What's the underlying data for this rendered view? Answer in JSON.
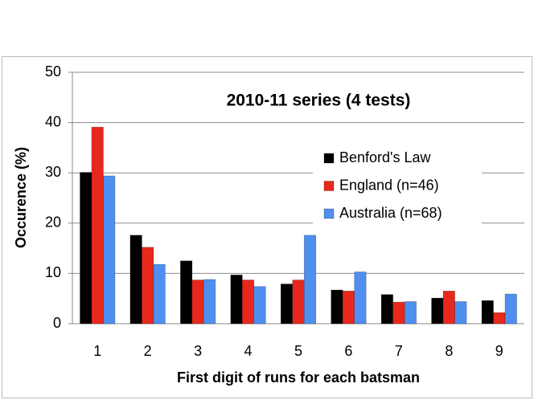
{
  "chart_data": {
    "type": "bar",
    "title": "2010-11 series (4 tests)",
    "x_label": "First digit of runs for each batsman",
    "y_label": "Occurence (%)",
    "categories": [
      "1",
      "2",
      "3",
      "4",
      "5",
      "6",
      "7",
      "8",
      "9"
    ],
    "series": [
      {
        "name": "Benford's Law",
        "color": "#000000",
        "values": [
          30.1,
          17.6,
          12.5,
          9.7,
          7.9,
          6.7,
          5.8,
          5.1,
          4.6
        ]
      },
      {
        "name": "England (n=46)",
        "color": "#e8281c",
        "values": [
          39.1,
          15.2,
          8.7,
          8.7,
          8.7,
          6.5,
          4.3,
          6.5,
          2.2
        ]
      },
      {
        "name": "Australia (n=68)",
        "color": "#4f8ff0",
        "values": [
          29.4,
          11.8,
          8.8,
          7.4,
          17.6,
          10.3,
          4.4,
          4.4,
          5.9
        ]
      }
    ],
    "ylim": [
      0,
      50
    ],
    "yticks": [
      0,
      10,
      20,
      30,
      40,
      50
    ],
    "grid": true,
    "legend": "right"
  }
}
